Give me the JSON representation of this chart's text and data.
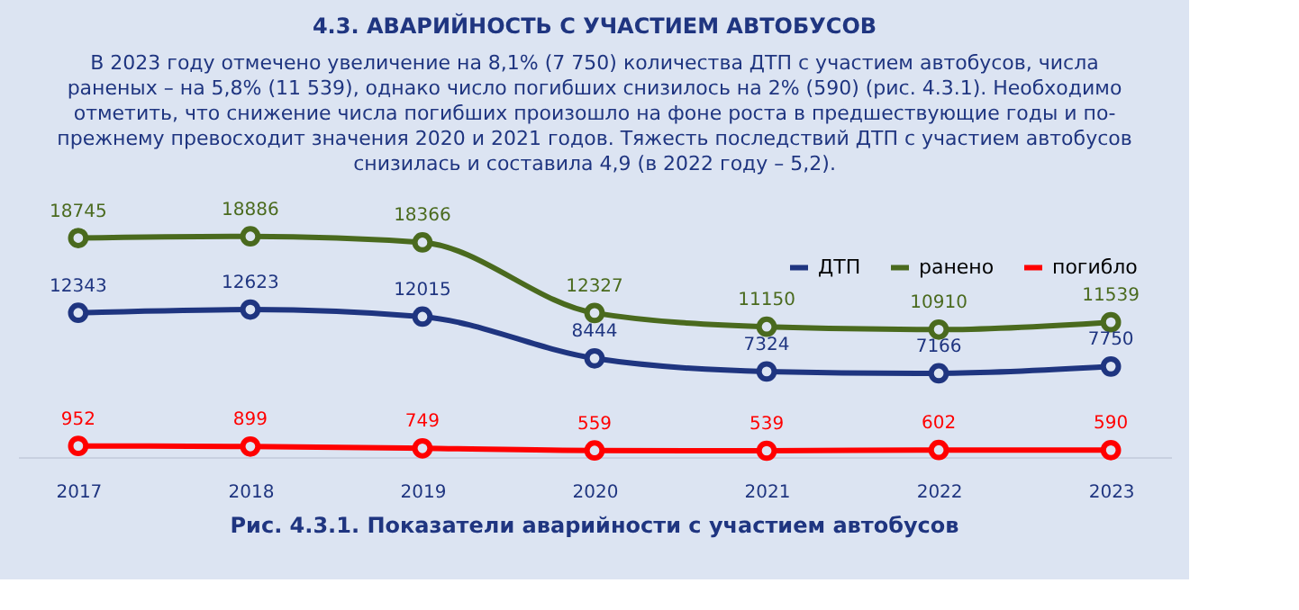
{
  "chart_data": {
    "type": "line",
    "title": "4.3. АВАРИЙНОСТЬ С УЧАСТИЕМ АВТОБУСОВ",
    "subtitle": [
      "В 2023 году отмечено увеличение на 8,1% (7 750) количества ДТП с участием автобусов, числа",
      "раненых – на 5,8% (11 539), однако число погибших снизилось на 2% (590) (рис. 4.3.1). Необходимо",
      "отметить, что снижение числа погибших произошло на фоне роста в предшествующие годы и по-",
      "прежнему превосходит значения 2020 и 2021 годов. Тяжесть последствий ДТП с участием автобусов",
      "снизилась и составила 4,9 (в 2022 году – 5,2)."
    ],
    "annotations": [
      "Рис. 4.3.1. Показатели аварийности с участием автобусов"
    ],
    "categories": [
      "2017",
      "2018",
      "2019",
      "2020",
      "2021",
      "2022",
      "2023"
    ],
    "series": [
      {
        "name": "ДТП",
        "color": "#1f3580",
        "values": [
          12343,
          12623,
          12015,
          8444,
          7324,
          7166,
          7750
        ]
      },
      {
        "name": "ранено",
        "color": "#4a6a1e",
        "values": [
          18745,
          18886,
          18366,
          12327,
          11150,
          10910,
          11539
        ]
      },
      {
        "name": "погибло",
        "color": "#ff0000",
        "values": [
          952,
          899,
          749,
          559,
          539,
          602,
          590
        ]
      }
    ],
    "data_labels": true,
    "legend": "top right",
    "marker": "circle",
    "line_style": "solid",
    "grid": false,
    "tick_labels": "x"
  }
}
